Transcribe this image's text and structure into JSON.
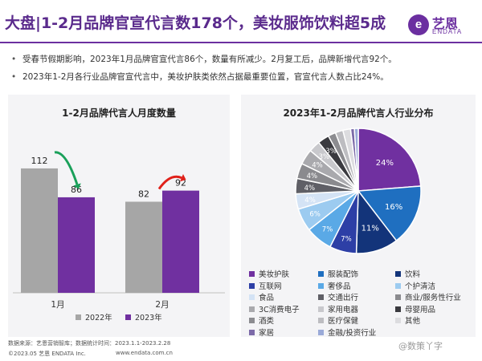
{
  "header": {
    "title": "大盘|1-2月品牌官宣代言数178个，美妆服饰饮料超5成",
    "logo_mark": "e",
    "logo_text": "艺恩",
    "logo_sub": "ENDATA"
  },
  "bullets": [
    "受春节假期影响，2023年1月品牌官宣代言86个，数量有所减少。2月复工后，品牌新增代言92个。",
    "2023年1-2月各行业品牌官宣代言中，美妆护肤类依然占据最重要位置，官宣代言人数占比24%。"
  ],
  "bullet_char": "•",
  "chart_data": [
    {
      "type": "bar",
      "title": "1-2月品牌代言人月度数量",
      "categories": [
        "1月",
        "2月"
      ],
      "series": [
        {
          "name": "2022年",
          "values": [
            112,
            82
          ],
          "color": "#a6a6a6"
        },
        {
          "name": "2023年",
          "values": [
            86,
            92
          ],
          "color": "#7030a0"
        }
      ],
      "ylim": [
        0,
        130
      ],
      "grid": false,
      "legend": "bottom",
      "arrows": [
        {
          "category": "1月",
          "direction": "down",
          "color": "#1aa05a"
        },
        {
          "category": "2月",
          "direction": "up",
          "color": "#e0211a"
        }
      ]
    },
    {
      "type": "pie",
      "title": "2023年1-2月品牌代言人行业分布",
      "legend": "bottom",
      "slices": [
        {
          "label": "美妆护肤",
          "value": 24,
          "color": "#7030a0",
          "shown": "24%"
        },
        {
          "label": "服装配饰",
          "value": 16,
          "color": "#1f6fc0",
          "shown": "16%"
        },
        {
          "label": "饮料",
          "value": 11,
          "color": "#13347a",
          "shown": "11%"
        },
        {
          "label": "互联网",
          "value": 7,
          "color": "#2d3fa6",
          "shown": "7%"
        },
        {
          "label": "奢侈品",
          "value": 7,
          "color": "#5aa9e6",
          "shown": "7%"
        },
        {
          "label": "个护清洁",
          "value": 6,
          "color": "#9ccbf0",
          "shown": "6%"
        },
        {
          "label": "食品",
          "value": 4,
          "color": "#d4e3f5",
          "shown": "4%"
        },
        {
          "label": "交通出行",
          "value": 4,
          "color": "#5f5f66",
          "shown": "4%"
        },
        {
          "label": "商业/服务性行业",
          "value": 4,
          "color": "#8a8a8e",
          "shown": "4%"
        },
        {
          "label": "3C消费电子",
          "value": 4,
          "color": "#a9a9ad",
          "shown": "4%"
        },
        {
          "label": "家用电器",
          "value": 3,
          "color": "#c8c8cc",
          "shown": "3%"
        },
        {
          "label": "母婴用品",
          "value": 3,
          "color": "#3a3a3f",
          "shown": "3%"
        },
        {
          "label": "酒类",
          "value": 2,
          "color": "#8c8c90",
          "shown": ""
        },
        {
          "label": "医疗保健",
          "value": 2,
          "color": "#bdbdc1",
          "shown": ""
        },
        {
          "label": "其他",
          "value": 2,
          "color": "#dcdcdf",
          "shown": ""
        },
        {
          "label": "家居",
          "value": 1,
          "color": "#7c6aa8",
          "shown": ""
        },
        {
          "label": "金融/投资行业",
          "value": 1,
          "color": "#9aaad8",
          "shown": ""
        }
      ]
    }
  ],
  "footer": {
    "source": "数据来源：艺恩营销智库；数据统计时间：2023.1.1-2023.2.28",
    "copyright": "©2023.05 艺恩 ENDATA Inc.",
    "website": "www.endata.com.cn"
  },
  "watermark": "@数策丫字"
}
